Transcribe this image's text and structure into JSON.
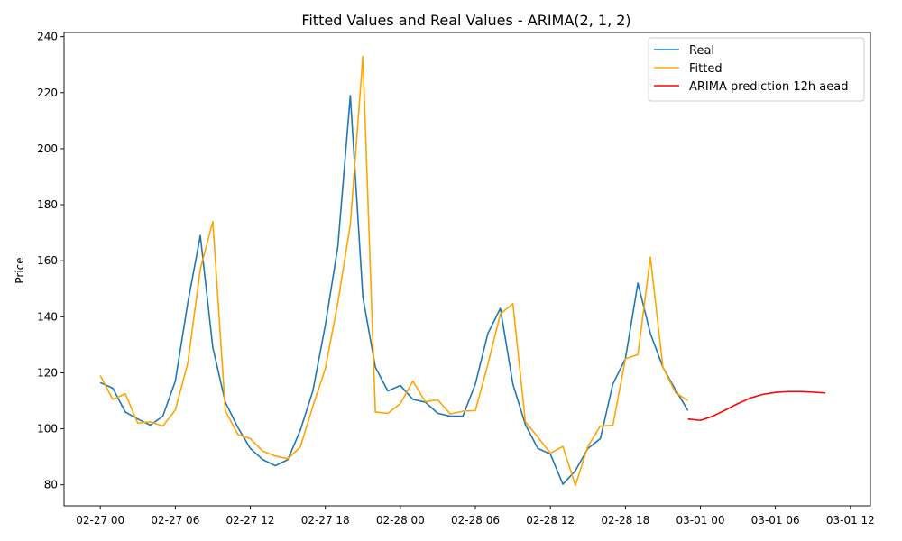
{
  "chart_data": {
    "type": "line",
    "title": "Fitted Values and Real Values - ARIMA(2, 1, 2)",
    "xlabel": "",
    "ylabel": "Price",
    "x_ticks": [
      "02-27 00",
      "02-27 06",
      "02-27 12",
      "02-27 18",
      "02-28 00",
      "02-28 06",
      "02-28 12",
      "02-28 18",
      "03-01 00",
      "03-01 06",
      "03-01 12"
    ],
    "y_ticks": [
      80,
      100,
      120,
      140,
      160,
      180,
      200,
      220,
      240
    ],
    "xlim_hours": [
      -2.9,
      61.6
    ],
    "ylim": [
      72.5,
      241.5
    ],
    "grid": false,
    "legend_position": "top-right",
    "series": [
      {
        "name": "Real",
        "color": "#1f77b4",
        "x_hours": [
          0,
          1,
          2,
          3,
          4,
          5,
          6,
          7,
          8,
          9,
          10,
          11,
          12,
          13,
          14,
          15,
          16,
          17,
          18,
          19,
          20,
          21,
          22,
          23,
          24,
          25,
          26,
          27,
          28,
          29,
          30,
          31,
          32,
          33,
          34,
          35,
          36,
          37,
          38,
          39,
          40,
          41,
          42,
          43,
          44,
          45,
          46,
          47
        ],
        "values": [
          116.5,
          114.5,
          106,
          103.5,
          101.3,
          104.5,
          117,
          145,
          169,
          129,
          109.5,
          100.5,
          93,
          89,
          86.8,
          89,
          99.5,
          113.5,
          137,
          165,
          219,
          147,
          122,
          113.5,
          115.5,
          110.5,
          109.5,
          105.5,
          104.5,
          104.5,
          116,
          134,
          143,
          116,
          101.5,
          93,
          91,
          80.2,
          85,
          93,
          96.5,
          116,
          125,
          152,
          134,
          122,
          114,
          106.5
        ]
      },
      {
        "name": "Fitted",
        "color": "#ffa500",
        "x_hours": [
          0,
          1,
          2,
          3,
          4,
          5,
          6,
          7,
          8,
          9,
          10,
          11,
          12,
          13,
          14,
          15,
          16,
          17,
          18,
          19,
          20,
          21,
          22,
          23,
          24,
          25,
          26,
          27,
          28,
          29,
          30,
          31,
          32,
          33,
          34,
          35,
          36,
          37,
          38,
          39,
          40,
          41,
          42,
          43,
          44,
          45,
          46,
          47
        ],
        "values": [
          119,
          110.5,
          112.5,
          102,
          102.5,
          101,
          106.7,
          123.5,
          157,
          174,
          106.5,
          98,
          96.5,
          92,
          90.3,
          89.3,
          93.5,
          108,
          121.5,
          145,
          173,
          233,
          106,
          105.5,
          109,
          117,
          109.7,
          110.3,
          105.3,
          106.3,
          106.5,
          123,
          141,
          144.7,
          102.5,
          97,
          91.3,
          93.7,
          79.8,
          93.7,
          101,
          101.2,
          125,
          126.5,
          161.3,
          122,
          113,
          110
        ]
      },
      {
        "name": "ARIMA prediction 12h aead",
        "color": "#ff0000",
        "x_hours": [
          47,
          48,
          49,
          50,
          51,
          52,
          53,
          54,
          55,
          56,
          57,
          58
        ],
        "values": [
          103.5,
          103,
          104.5,
          106.7,
          109,
          111,
          112.3,
          113,
          113.3,
          113.3,
          113.1,
          112.8
        ]
      }
    ]
  }
}
